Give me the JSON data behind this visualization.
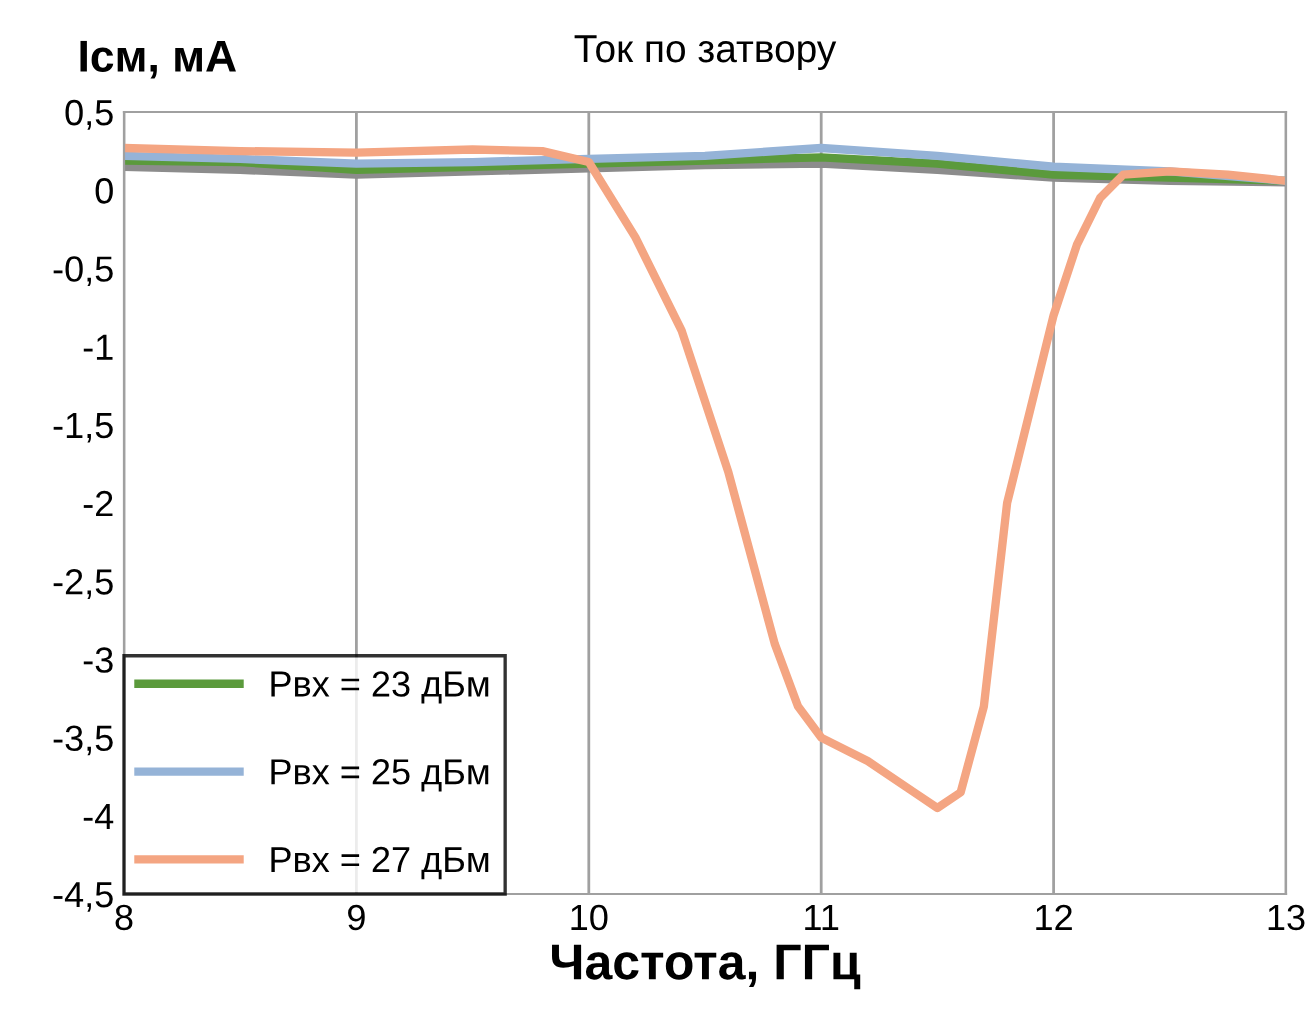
{
  "chart_data": {
    "type": "line",
    "title": "Ток по затвору",
    "xlabel": "Частота, ГГц",
    "ylabel": "Iсм, мА",
    "xlim": [
      8,
      13
    ],
    "xticks": [
      8,
      9,
      10,
      11,
      12,
      13
    ],
    "ylim": [
      -4.5,
      0.5
    ],
    "yticks": [
      {
        "value": 0.5,
        "label": "0,5"
      },
      0,
      {
        "value": -0.5,
        "label": "-0,5"
      },
      -1,
      {
        "value": -1.5,
        "label": "-1,5"
      },
      -2,
      {
        "value": -2.5,
        "label": "-2,5"
      },
      -3,
      {
        "value": -3.5,
        "label": "-3,5"
      },
      -4,
      {
        "value": -4.5,
        "label": "-4,5"
      }
    ],
    "grid": "x",
    "legend": "bottom left",
    "marker": "none",
    "line_style": "solid",
    "x": [
      8,
      8.5,
      9,
      9.5,
      10,
      10.5,
      11,
      11.5,
      12,
      12.5,
      13
    ],
    "series": [
      {
        "color": "#8c8c8c",
        "values": [
          0.15,
          0.13,
          0.1,
          0.12,
          0.14,
          0.16,
          0.17,
          0.13,
          0.08,
          0.06,
          0.05
        ]
      },
      {
        "name": "Рвх = 23 дБм",
        "color": "#5b9a3c",
        "values": [
          0.19,
          0.18,
          0.13,
          0.15,
          0.17,
          0.19,
          0.21,
          0.17,
          0.1,
          0.08,
          0.06
        ]
      },
      {
        "name": "Рвх = 25 дБм",
        "color": "#95b3d7",
        "values": [
          0.22,
          0.2,
          0.17,
          0.18,
          0.2,
          0.22,
          0.27,
          0.22,
          0.15,
          0.12,
          0.06
        ]
      },
      {
        "name": "Рвх = 27 дБм",
        "color": "#f4a582",
        "x": [
          8,
          8.5,
          9,
          9.5,
          9.8,
          10,
          10.2,
          10.4,
          10.6,
          10.8,
          10.9,
          11,
          11.2,
          11.4,
          11.5,
          11.6,
          11.7,
          11.8,
          11.9,
          12,
          12.1,
          12.2,
          12.3,
          12.5,
          12.75,
          13
        ],
        "values": [
          0.27,
          0.25,
          0.24,
          0.26,
          0.25,
          0.18,
          -0.3,
          -0.9,
          -1.8,
          -2.9,
          -3.3,
          -3.5,
          -3.65,
          -3.85,
          -3.95,
          -3.85,
          -3.3,
          -2.0,
          -1.4,
          -0.8,
          -0.35,
          -0.05,
          0.1,
          0.12,
          0.1,
          0.06
        ]
      }
    ]
  }
}
